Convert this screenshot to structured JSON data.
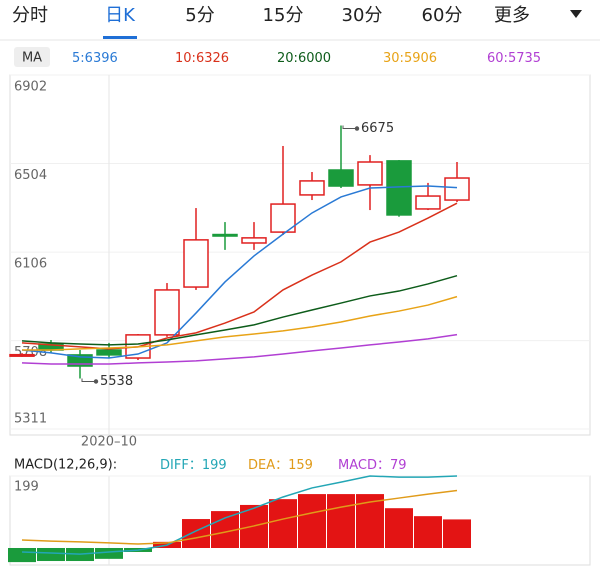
{
  "tabs": [
    "分时",
    "日K",
    "5分",
    "15分",
    "30分",
    "60分",
    "更多"
  ],
  "active_tab": 1,
  "chart_data": [
    {
      "type": "candlestick",
      "ma_label": "MA",
      "separator": ":",
      "categories": [
        null,
        null,
        null,
        "2020–10",
        null,
        null,
        null,
        null,
        null,
        null,
        null,
        null,
        null,
        null,
        null,
        null
      ],
      "open": [
        5640,
        5693,
        5644,
        5666,
        5630,
        5734,
        5949,
        6185,
        6147,
        6196,
        6363,
        6475,
        6408,
        6516,
        6300,
        6340
      ],
      "high": [
        5652,
        5711,
        5666,
        5698,
        5738,
        5967,
        6304,
        6241,
        6241,
        6583,
        6466,
        6675,
        6542,
        6520,
        6417,
        6511
      ],
      "low": [
        5635,
        5653,
        5538,
        5630,
        5621,
        5725,
        5936,
        6116,
        6116,
        6183,
        6340,
        6394,
        6295,
        6265,
        6295,
        6331
      ],
      "close": [
        5645,
        5666,
        5594,
        5644,
        5734,
        5936,
        6161,
        6180,
        6170,
        6322,
        6426,
        6403,
        6511,
        6273,
        6358,
        6439
      ],
      "up_color": "#e02020",
      "down_color": "#1a9b3c",
      "ylim": [
        5311,
        6902
      ],
      "yticks": [
        5311,
        5708,
        6106,
        6504,
        6902
      ],
      "grid": true,
      "series": [
        {
          "name": "5",
          "color": "#2a7ad5",
          "values": [
            5666,
            5653,
            5635,
            5630,
            5648,
            5698,
            5832,
            5972,
            6089,
            6187,
            6282,
            6354,
            6394,
            6399,
            6403,
            6396
          ]
        },
        {
          "name": "10",
          "color": "#d9311b",
          "values": [
            5698,
            5689,
            5680,
            5671,
            5680,
            5720,
            5743,
            5787,
            5837,
            5936,
            6003,
            6062,
            6151,
            6196,
            6259,
            6326
          ]
        },
        {
          "name": "20",
          "color": "#0d5c1a",
          "values": [
            5707,
            5698,
            5693,
            5689,
            5693,
            5711,
            5734,
            5756,
            5779,
            5814,
            5846,
            5877,
            5909,
            5931,
            5963,
            6000
          ]
        },
        {
          "name": "30",
          "color": "#e8a317",
          "values": [
            5666,
            5666,
            5671,
            5675,
            5680,
            5689,
            5707,
            5725,
            5738,
            5752,
            5770,
            5792,
            5819,
            5841,
            5868,
            5906
          ]
        },
        {
          "name": "60",
          "color": "#b13fd3",
          "values": [
            5608,
            5603,
            5603,
            5603,
            5608,
            5612,
            5617,
            5626,
            5635,
            5648,
            5662,
            5675,
            5689,
            5702,
            5716,
            5735
          ]
        }
      ]
    },
    {
      "type": "macd",
      "title": "MACD(12,26,9):",
      "separator": "：",
      "ylim": [
        -47,
        199
      ],
      "yticks": [
        199
      ],
      "series": [
        {
          "name": "DIFF",
          "color": "#23a6b5",
          "values": [
            -11,
            -14,
            -17,
            -11,
            -6,
            8,
            47,
            83,
            110,
            141,
            166,
            182,
            199,
            196,
            196,
            199
          ]
        },
        {
          "name": "DEA",
          "color": "#e09b1a",
          "values": [
            22,
            19,
            17,
            14,
            11,
            14,
            28,
            44,
            61,
            80,
            97,
            113,
            127,
            138,
            149,
            159
          ]
        },
        {
          "name": "MACD",
          "color": "#b13fd3",
          "up_color": "#e31414",
          "down_color": "#1a9b3c",
          "values": [
            -39,
            -36,
            -36,
            -30,
            -11,
            17,
            80,
            102,
            119,
            135,
            149,
            149,
            149,
            110,
            88,
            79
          ]
        }
      ]
    }
  ]
}
